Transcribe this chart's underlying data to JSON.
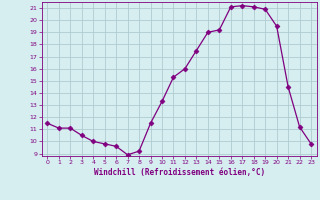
{
  "x": [
    0,
    1,
    2,
    3,
    4,
    5,
    6,
    7,
    8,
    9,
    10,
    11,
    12,
    13,
    14,
    15,
    16,
    17,
    18,
    19,
    20,
    21,
    22,
    23
  ],
  "y": [
    11.5,
    11.1,
    11.1,
    10.5,
    10.0,
    9.8,
    9.6,
    8.9,
    9.2,
    11.5,
    13.3,
    15.3,
    16.0,
    17.5,
    19.0,
    19.2,
    21.1,
    21.2,
    21.1,
    20.9,
    19.5,
    14.5,
    11.2,
    9.8
  ],
  "line_color": "#800080",
  "marker": "D",
  "marker_size": 2.5,
  "bg_color": "#d6eef0",
  "grid_color": "#b0ccd0",
  "xlabel": "Windchill (Refroidissement éolien,°C)",
  "xlabel_color": "#800080",
  "tick_color": "#800080",
  "ylim": [
    8.8,
    21.5
  ],
  "xlim": [
    -0.5,
    23.5
  ],
  "yticks": [
    9,
    10,
    11,
    12,
    13,
    14,
    15,
    16,
    17,
    18,
    19,
    20,
    21
  ],
  "xticks": [
    0,
    1,
    2,
    3,
    4,
    5,
    6,
    7,
    8,
    9,
    10,
    11,
    12,
    13,
    14,
    15,
    16,
    17,
    18,
    19,
    20,
    21,
    22,
    23
  ]
}
